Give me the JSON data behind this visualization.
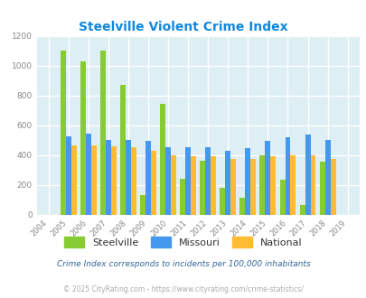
{
  "title": "Steelville Violent Crime Index",
  "years": [
    2004,
    2005,
    2006,
    2007,
    2008,
    2009,
    2010,
    2011,
    2012,
    2013,
    2014,
    2015,
    2016,
    2017,
    2018,
    2019
  ],
  "steelville": [
    null,
    1100,
    1030,
    1100,
    870,
    130,
    745,
    240,
    360,
    180,
    115,
    400,
    235,
    65,
    355,
    null
  ],
  "missouri": [
    null,
    525,
    545,
    500,
    500,
    495,
    455,
    450,
    450,
    430,
    445,
    495,
    520,
    535,
    500,
    null
  ],
  "national": [
    null,
    465,
    465,
    460,
    455,
    430,
    400,
    390,
    390,
    375,
    375,
    390,
    395,
    395,
    375,
    null
  ],
  "ylim": [
    0,
    1200
  ],
  "yticks": [
    0,
    200,
    400,
    600,
    800,
    1000,
    1200
  ],
  "steelville_color": "#88cc33",
  "missouri_color": "#4499ee",
  "national_color": "#ffbb33",
  "bg_color": "#ddeef5",
  "title_color": "#1188dd",
  "subtitle": "Crime Index corresponds to incidents per 100,000 inhabitants",
  "footer": "© 2025 CityRating.com - https://www.cityrating.com/crime-statistics/",
  "subtitle_color": "#336699",
  "footer_color": "#aaaaaa",
  "tick_color": "#888888"
}
